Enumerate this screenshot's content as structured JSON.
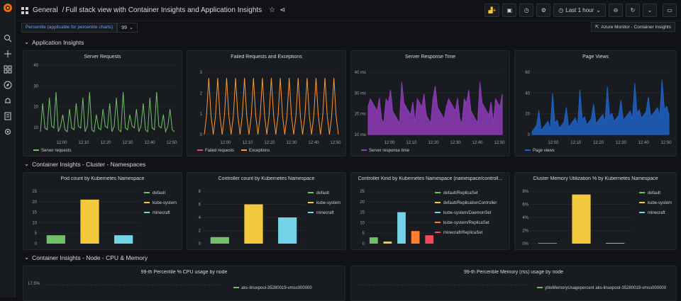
{
  "breadcrumb": {
    "folder": "General",
    "separator": "/",
    "title": "Full stack view with Container Insights and Application Insights"
  },
  "toolbar": {
    "time_range": "Last 1 hour"
  },
  "variables": {
    "percentile_label": "Percentile (applicable for percentile charts)",
    "percentile_value": "99",
    "link_label": "Azure Monitor - Container Insights"
  },
  "rows": {
    "app": "Application Insights",
    "cluster": "Container Insights - Cluster - Namespaces",
    "node": "Container Insights - Node - CPU & Memory"
  },
  "panels": {
    "server_requests": {
      "title": "Server Requests",
      "legend": [
        "Server requests"
      ],
      "yticks": [
        "10",
        "20",
        "30",
        "40"
      ],
      "xticks": [
        "12:00",
        "12:10",
        "12:20",
        "12:30",
        "12:40",
        "12:50"
      ],
      "color": "#73bf69"
    },
    "failed": {
      "title": "Failed Requests and Exceptions",
      "legend": [
        "Failed requests",
        "Exceptions"
      ],
      "yticks": [
        "0",
        "1",
        "2",
        "3"
      ],
      "xticks": [
        "12:00",
        "12:10",
        "12:20",
        "12:30",
        "12:40",
        "12:50"
      ],
      "colors": [
        "#f2495c",
        "#ff9830"
      ]
    },
    "response": {
      "title": "Server Response Time",
      "legend": [
        "Server response time"
      ],
      "yticks": [
        "10 ms",
        "20 ms",
        "30 ms",
        "40 ms"
      ],
      "xticks": [
        "12:00",
        "12:10",
        "12:20",
        "12:30",
        "12:40",
        "12:50"
      ],
      "color": "#8f3bb8"
    },
    "pageviews": {
      "title": "Page Views",
      "legend": [
        "Page views"
      ],
      "yticks": [
        "0",
        "20",
        "40",
        "60"
      ],
      "xticks": [
        "12:00",
        "12:10",
        "12:20",
        "12:30",
        "12:40",
        "12:50"
      ],
      "color": "#1f60c4"
    },
    "pod_count": {
      "title": "Pod count by Kubernetes Namespace",
      "yticks": [
        "0",
        "5",
        "10",
        "15",
        "20",
        "25"
      ]
    },
    "controller_count": {
      "title": "Controller count by Kubernetes Namespace",
      "yticks": [
        "0",
        "2",
        "4",
        "6",
        "8"
      ]
    },
    "controller_kind": {
      "title": "Controller Kind by Kubernetes Namespace (namespace/controll...",
      "yticks": [
        "0",
        "5",
        "10",
        "15",
        "20",
        "25"
      ]
    },
    "memory_util": {
      "title": "Cluster Memory Utilization % by Kubernetes Namespace",
      "yticks": [
        "0%",
        "2%",
        "4%",
        "6%",
        "8%"
      ]
    },
    "cpu_node": {
      "title": "99-th Percentile % CPU usage by node",
      "ytick": "17.5%",
      "legend": [
        "aks-linuxpool-35280019-vmss000000"
      ]
    },
    "mem_node": {
      "title": "99-th Percentile Memory (rss) usage by node",
      "legend": [
        "ytileMemoryUsagepercent aks-linuxpool-35280019-vmss000000"
      ]
    }
  },
  "chart_data": [
    {
      "type": "bar",
      "title": "Pod count by Kubernetes Namespace",
      "categories": [
        "default",
        "kube-system",
        "minecraft"
      ],
      "values": [
        4,
        21,
        4
      ],
      "colors": [
        "#73bf69",
        "#f2c83c",
        "#73d3e6"
      ],
      "ylim": [
        0,
        25
      ]
    },
    {
      "type": "bar",
      "title": "Controller count by Kubernetes Namespace",
      "categories": [
        "default",
        "kube-system",
        "minecraft"
      ],
      "values": [
        1,
        6,
        4
      ],
      "colors": [
        "#73bf69",
        "#f2c83c",
        "#73d3e6"
      ],
      "ylim": [
        0,
        8
      ]
    },
    {
      "type": "bar",
      "title": "Controller Kind by Kubernetes Namespace (namespace/controll...",
      "categories": [
        "default/ReplicaSet",
        "default/ReplicationController",
        "kube-system/DaemonSet",
        "kube-system/ReplicaSet",
        "minecraft/ReplicaSet"
      ],
      "values": [
        3,
        1,
        15,
        6,
        4
      ],
      "colors": [
        "#73bf69",
        "#f2c83c",
        "#73d3e6",
        "#ff7f31",
        "#f2495c"
      ],
      "ylim": [
        0,
        25
      ]
    },
    {
      "type": "bar",
      "title": "Cluster Memory Utilization % by Kubernetes Namespace",
      "categories": [
        "default",
        "kube-system",
        "minecraft"
      ],
      "values": [
        0.1,
        7.5,
        0.1
      ],
      "colors": [
        "#73bf69",
        "#f2c83c",
        "#73d3e6"
      ],
      "ylim": [
        0,
        8
      ]
    }
  ]
}
